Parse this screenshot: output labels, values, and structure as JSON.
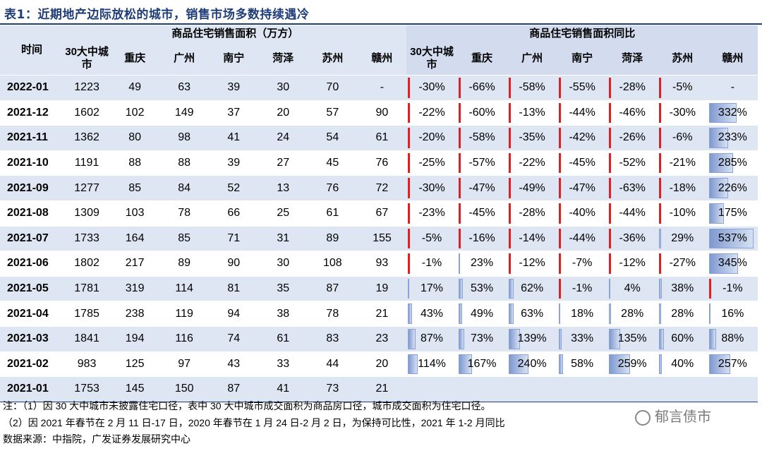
{
  "title": "表1：近期地产边际放松的城市，销售市场多数持续遇冷",
  "header": {
    "time_label": "时间",
    "group_left": "商品住宅销售面积（万方）",
    "group_right": "商品住宅销售面积同比",
    "cities": [
      "30大中城市",
      "重庆",
      "广州",
      "南宁",
      "菏泽",
      "苏州",
      "赣州"
    ]
  },
  "rows": [
    {
      "date": "2022-01",
      "area": [
        "1223",
        "49",
        "63",
        "39",
        "30",
        "70",
        "-"
      ],
      "yoy": [
        "-30%",
        "-66%",
        "-58%",
        "-55%",
        "-28%",
        "-5%",
        "-"
      ]
    },
    {
      "date": "2021-12",
      "area": [
        "1602",
        "102",
        "149",
        "37",
        "20",
        "57",
        "90"
      ],
      "yoy": [
        "-22%",
        "-60%",
        "-13%",
        "-44%",
        "-46%",
        "-30%",
        "332%"
      ]
    },
    {
      "date": "2021-11",
      "area": [
        "1362",
        "80",
        "98",
        "41",
        "24",
        "54",
        "61"
      ],
      "yoy": [
        "-20%",
        "-58%",
        "-35%",
        "-42%",
        "-26%",
        "-6%",
        "233%"
      ]
    },
    {
      "date": "2021-10",
      "area": [
        "1191",
        "88",
        "88",
        "39",
        "27",
        "45",
        "76"
      ],
      "yoy": [
        "-25%",
        "-57%",
        "-22%",
        "-45%",
        "-52%",
        "-21%",
        "285%"
      ]
    },
    {
      "date": "2021-09",
      "area": [
        "1277",
        "85",
        "84",
        "52",
        "13",
        "76",
        "72"
      ],
      "yoy": [
        "-30%",
        "-47%",
        "-49%",
        "-47%",
        "-63%",
        "-18%",
        "226%"
      ]
    },
    {
      "date": "2021-08",
      "area": [
        "1309",
        "103",
        "78",
        "66",
        "25",
        "61",
        "67"
      ],
      "yoy": [
        "-23%",
        "-45%",
        "-28%",
        "-40%",
        "-44%",
        "-10%",
        "175%"
      ]
    },
    {
      "date": "2021-07",
      "area": [
        "1733",
        "164",
        "85",
        "71",
        "31",
        "89",
        "155"
      ],
      "yoy": [
        "-5%",
        "-16%",
        "-14%",
        "-44%",
        "-36%",
        "29%",
        "537%"
      ]
    },
    {
      "date": "2021-06",
      "area": [
        "1802",
        "217",
        "89",
        "90",
        "30",
        "108",
        "93"
      ],
      "yoy": [
        "-1%",
        "23%",
        "-12%",
        "-7%",
        "-12%",
        "-27%",
        "345%"
      ]
    },
    {
      "date": "2021-05",
      "area": [
        "1781",
        "319",
        "114",
        "81",
        "35",
        "87",
        "19"
      ],
      "yoy": [
        "17%",
        "53%",
        "62%",
        "-1%",
        "4%",
        "38%",
        "-1%"
      ]
    },
    {
      "date": "2021-04",
      "area": [
        "1785",
        "238",
        "119",
        "94",
        "38",
        "78",
        "21"
      ],
      "yoy": [
        "43%",
        "49%",
        "63%",
        "18%",
        "28%",
        "28%",
        "16%"
      ]
    },
    {
      "date": "2021-03",
      "area": [
        "1841",
        "194",
        "116",
        "74",
        "61",
        "83",
        "23"
      ],
      "yoy": [
        "87%",
        "73%",
        "139%",
        "33%",
        "135%",
        "60%",
        "88%"
      ]
    },
    {
      "date": "2021-02",
      "area": [
        "983",
        "125",
        "97",
        "43",
        "33",
        "44",
        "20"
      ],
      "yoy": [
        "114%",
        "167%",
        "240%",
        "58%",
        "259%",
        "40%",
        "257%"
      ]
    },
    {
      "date": "2021-01",
      "area": [
        "1753",
        "145",
        "150",
        "87",
        "41",
        "73",
        "21"
      ],
      "yoy": [
        "",
        "",
        "",
        "",
        "",
        "",
        ""
      ]
    }
  ],
  "notes": {
    "note1": "注：（1）因 30 大中城市未披露住宅口径，表中 30 大中城市成交面积为商品房口径，城市成交面积为住宅口径。",
    "note2": "（2）因 2021 年春节在 2 月 11 日-17 日，2020 年春节在 1 月 24 日-2 月 2 日，为保持可比性，2021 年 1-2 月同比",
    "source": "数据来源：中指院，广发证券发展研究中心"
  },
  "watermark": "郁言债市",
  "colors": {
    "title": "#1f3d7a",
    "band": "#dfe6f3",
    "negative_bar": "#e02020",
    "positive_bar": "#7f99cf"
  }
}
